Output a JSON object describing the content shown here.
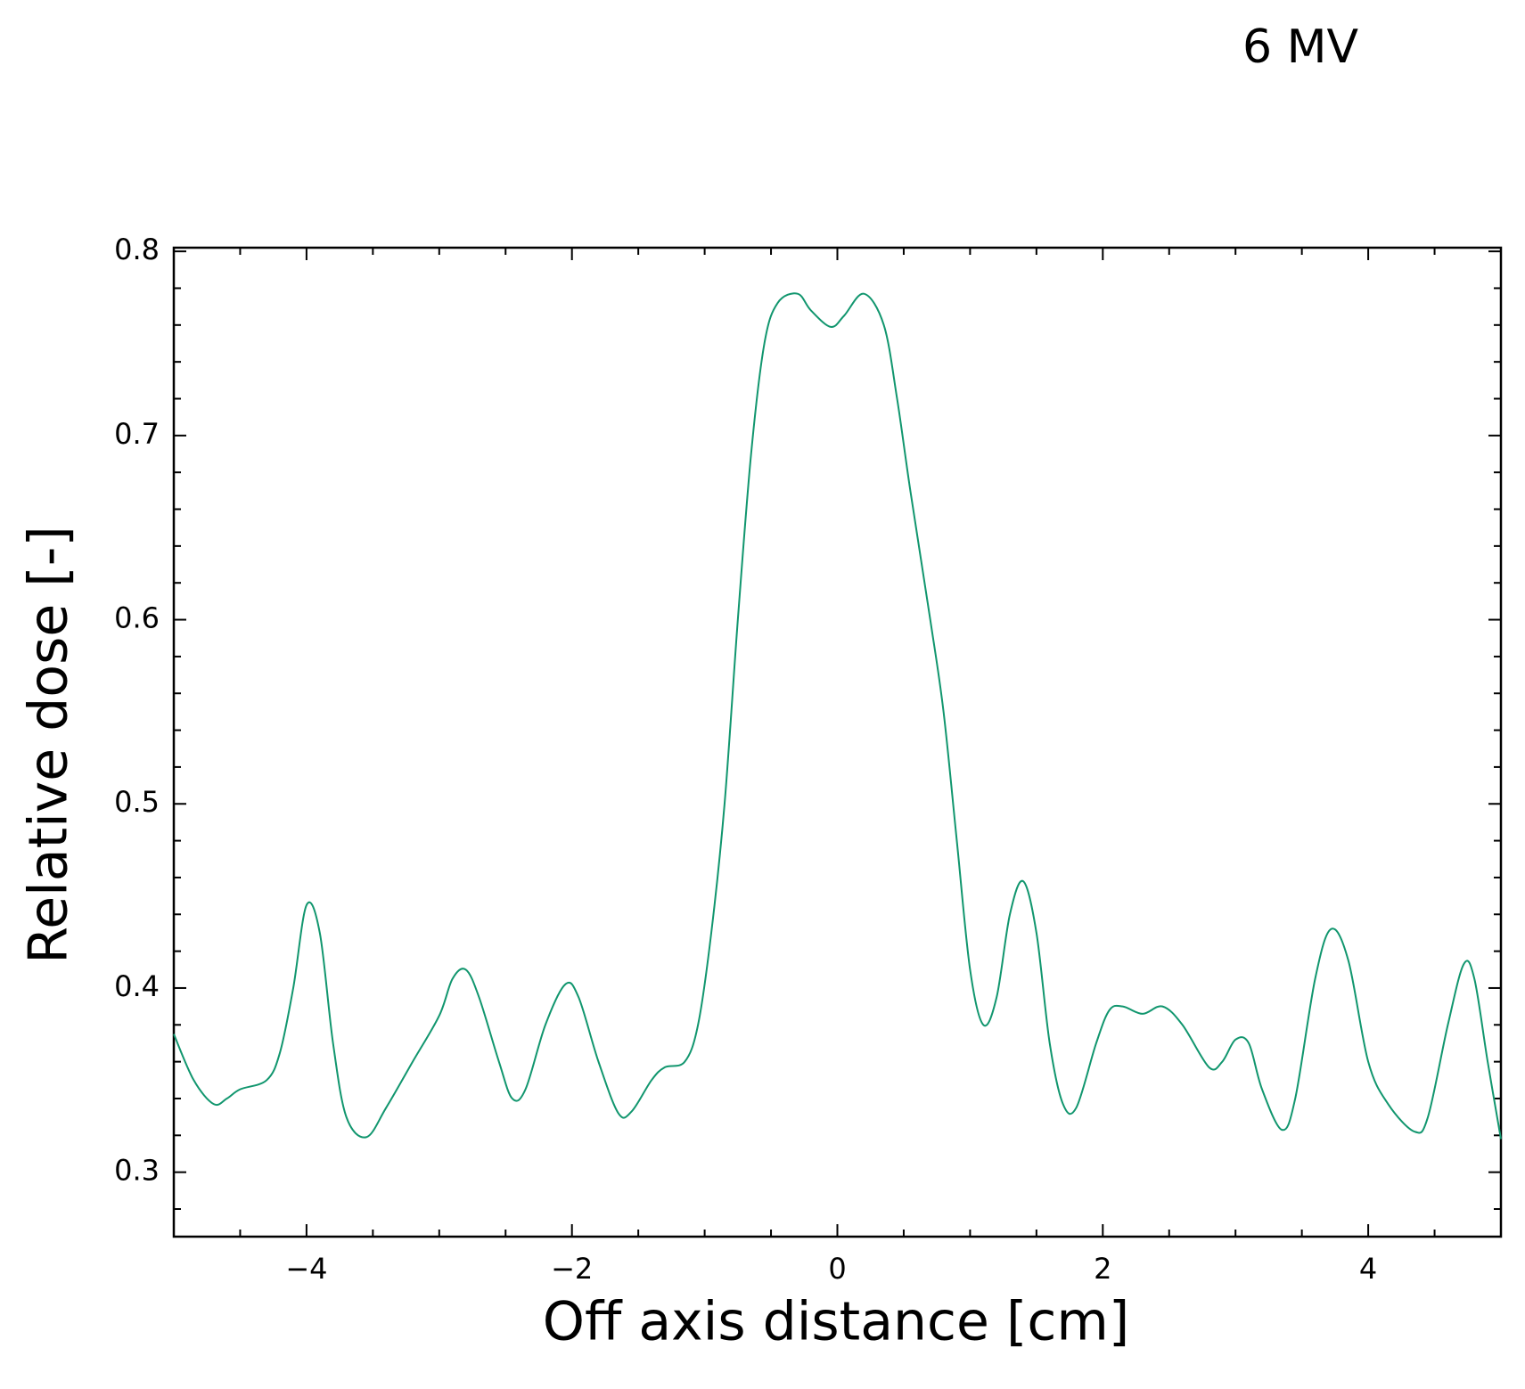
{
  "chart_data": {
    "type": "line",
    "title": "6 MV",
    "x_label": "Off axis distance [cm]",
    "y_label": "Relative dose [-]",
    "x": [
      -5,
      -4.85,
      -4.7,
      -4.6,
      -4.5,
      -4.3,
      -4.2,
      -4.1,
      -4.0,
      -3.9,
      -3.8,
      -3.7,
      -3.55,
      -3.4,
      -3.2,
      -3.0,
      -2.9,
      -2.8,
      -2.7,
      -2.55,
      -2.45,
      -2.35,
      -2.2,
      -2.05,
      -1.95,
      -1.8,
      -1.65,
      -1.55,
      -1.4,
      -1.3,
      -1.15,
      -1.05,
      -0.95,
      -0.85,
      -0.75,
      -0.65,
      -0.55,
      -0.45,
      -0.3,
      -0.2,
      -0.05,
      0.05,
      0.2,
      0.35,
      0.45,
      0.55,
      0.7,
      0.8,
      0.9,
      1.0,
      1.1,
      1.2,
      1.3,
      1.4,
      1.5,
      1.6,
      1.7,
      1.8,
      1.95,
      2.05,
      2.15,
      2.3,
      2.45,
      2.6,
      2.8,
      2.9,
      3.0,
      3.1,
      3.2,
      3.35,
      3.45,
      3.6,
      3.72,
      3.85,
      4.0,
      4.15,
      4.35,
      4.45,
      4.6,
      4.72,
      4.8,
      4.9,
      5.0
    ],
    "series": [
      {
        "color": "#11966e",
        "values": [
          0.375,
          0.35,
          0.337,
          0.34,
          0.345,
          0.35,
          0.365,
          0.4,
          0.445,
          0.43,
          0.37,
          0.33,
          0.319,
          0.335,
          0.36,
          0.385,
          0.405,
          0.41,
          0.395,
          0.36,
          0.34,
          0.345,
          0.38,
          0.402,
          0.395,
          0.36,
          0.332,
          0.333,
          0.35,
          0.357,
          0.36,
          0.38,
          0.43,
          0.5,
          0.6,
          0.69,
          0.75,
          0.772,
          0.777,
          0.768,
          0.759,
          0.765,
          0.777,
          0.76,
          0.72,
          0.67,
          0.6,
          0.55,
          0.48,
          0.41,
          0.38,
          0.395,
          0.44,
          0.458,
          0.43,
          0.37,
          0.337,
          0.335,
          0.37,
          0.388,
          0.39,
          0.386,
          0.39,
          0.38,
          0.357,
          0.36,
          0.372,
          0.37,
          0.345,
          0.323,
          0.34,
          0.405,
          0.432,
          0.415,
          0.36,
          0.337,
          0.322,
          0.33,
          0.38,
          0.413,
          0.405,
          0.36,
          0.318
        ]
      }
    ],
    "xlim": [
      -5,
      5
    ],
    "ylim": [
      0.265,
      0.802
    ],
    "xticks": [
      {
        "value": -4,
        "label": "−4"
      },
      {
        "value": -2,
        "label": "−2"
      },
      0,
      2,
      4
    ],
    "yticks": [
      0.3,
      0.4,
      0.5,
      0.6,
      0.7,
      0.8
    ],
    "xminorticks": [
      -4.5,
      -3.5,
      -3,
      -2.5,
      -1.5,
      -1,
      -0.5,
      0.5,
      1,
      1.5,
      2.5,
      3,
      3.5,
      4.5
    ],
    "yminorticks": [
      0.28,
      0.32,
      0.34,
      0.36,
      0.38,
      0.42,
      0.44,
      0.46,
      0.48,
      0.52,
      0.54,
      0.56,
      0.58,
      0.62,
      0.64,
      0.66,
      0.68,
      0.72,
      0.74,
      0.76,
      0.78
    ],
    "grid": false
  }
}
